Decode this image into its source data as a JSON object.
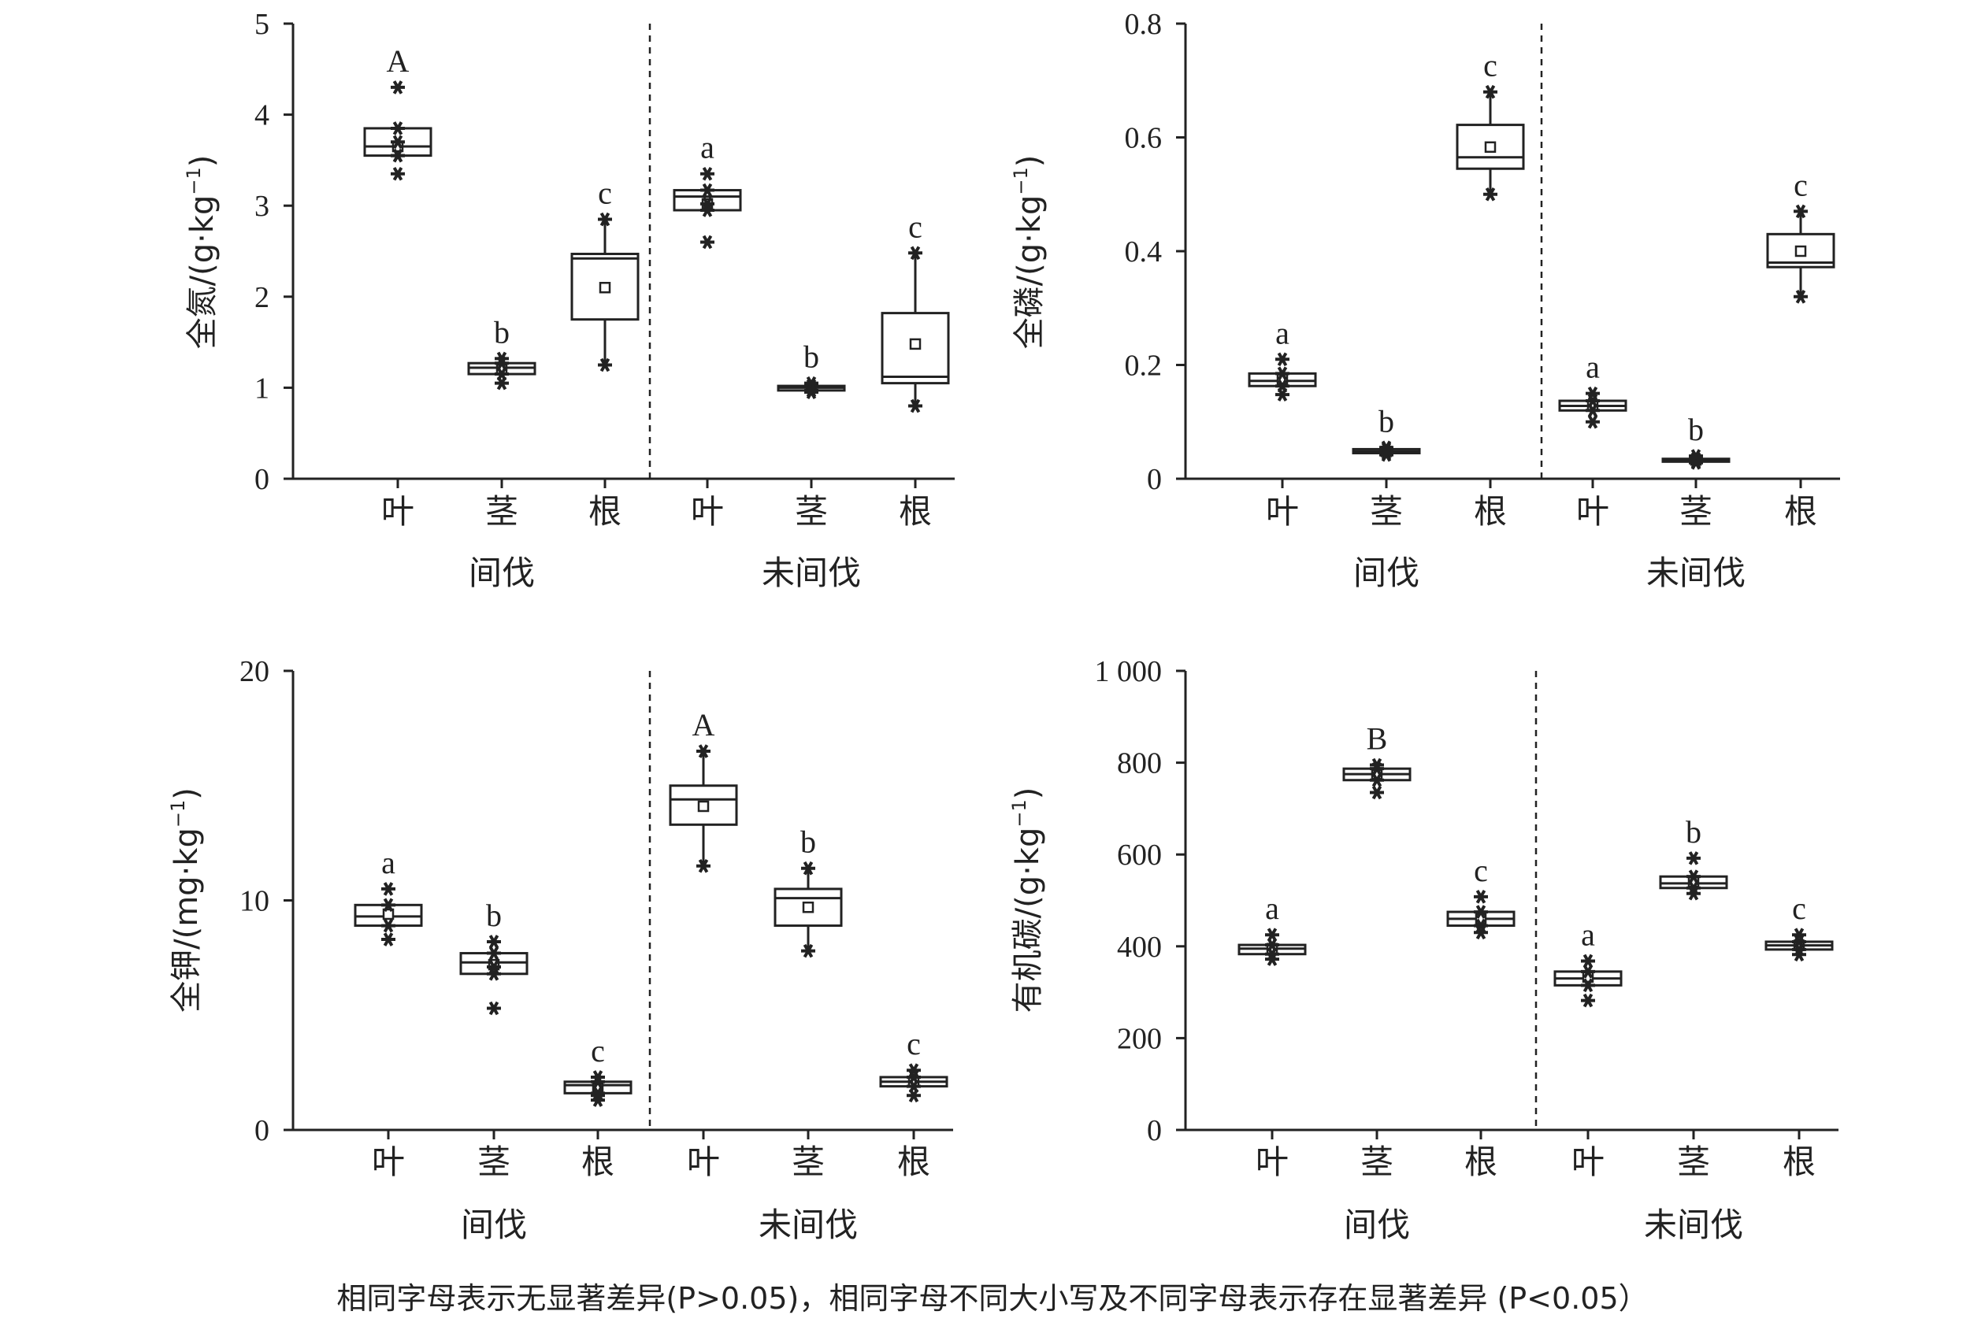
{
  "chart_data": [
    {
      "type": "box",
      "id": "N",
      "ylabel": "全氮/(g·kg",
      "ylabel_sup": "−1",
      "ylabel_end": ")",
      "ylim": [
        0,
        5
      ],
      "yticks": [
        "0",
        "1",
        "2",
        "3",
        "4",
        "5"
      ],
      "categories": [
        "叶",
        "茎",
        "根",
        "叶",
        "茎",
        "根"
      ],
      "groups": [
        "间伐",
        "未间伐"
      ],
      "boxes": [
        {
          "q1": 3.55,
          "median": 3.65,
          "q3": 3.85,
          "mean": 3.65,
          "wlow": 3.55,
          "whigh": 3.85,
          "outliers": [
            4.3,
            3.35,
            3.55,
            3.7
          ],
          "letter": "A"
        },
        {
          "q1": 1.15,
          "median": 1.22,
          "q3": 1.27,
          "mean": 1.2,
          "wlow": 1.15,
          "whigh": 1.27,
          "outliers": [
            1.32,
            1.05
          ],
          "letter": "b"
        },
        {
          "q1": 1.75,
          "median": 2.42,
          "q3": 2.47,
          "mean": 2.1,
          "wlow": 1.25,
          "whigh": 2.85,
          "outliers": [],
          "letter": "c"
        },
        {
          "q1": 2.95,
          "median": 3.1,
          "q3": 3.17,
          "mean": 3.02,
          "wlow": 2.95,
          "whigh": 3.17,
          "outliers": [
            3.35,
            2.6,
            3.02
          ],
          "letter": "a"
        },
        {
          "q1": 0.97,
          "median": 1.0,
          "q3": 1.02,
          "mean": 1.0,
          "wlow": 0.97,
          "whigh": 1.02,
          "outliers": [
            1.05,
            0.95
          ],
          "letter": "b"
        },
        {
          "q1": 1.05,
          "median": 1.12,
          "q3": 1.82,
          "mean": 1.48,
          "wlow": 0.8,
          "whigh": 2.48,
          "outliers": [],
          "letter": "c"
        }
      ]
    },
    {
      "type": "box",
      "id": "P",
      "ylabel": "全磷/(g·kg",
      "ylabel_sup": "−1",
      "ylabel_end": ")",
      "ylim": [
        0,
        0.8
      ],
      "yticks": [
        "0",
        "0.2",
        "0.4",
        "0.6",
        "0.8"
      ],
      "categories": [
        "叶",
        "茎",
        "根",
        "叶",
        "茎",
        "根"
      ],
      "groups": [
        "间伐",
        "未间伐"
      ],
      "boxes": [
        {
          "q1": 0.163,
          "median": 0.172,
          "q3": 0.185,
          "mean": 0.175,
          "wlow": 0.163,
          "whigh": 0.185,
          "outliers": [
            0.21,
            0.148
          ],
          "letter": "a"
        },
        {
          "q1": 0.045,
          "median": 0.048,
          "q3": 0.052,
          "mean": 0.048,
          "wlow": 0.045,
          "whigh": 0.052,
          "outliers": [
            0.055,
            0.042
          ],
          "letter": "b"
        },
        {
          "q1": 0.545,
          "median": 0.565,
          "q3": 0.622,
          "mean": 0.583,
          "wlow": 0.5,
          "whigh": 0.68,
          "outliers": [],
          "letter": "c"
        },
        {
          "q1": 0.12,
          "median": 0.128,
          "q3": 0.137,
          "mean": 0.128,
          "wlow": 0.12,
          "whigh": 0.137,
          "outliers": [
            0.15,
            0.1
          ],
          "letter": "a"
        },
        {
          "q1": 0.03,
          "median": 0.033,
          "q3": 0.035,
          "mean": 0.033,
          "wlow": 0.03,
          "whigh": 0.035,
          "outliers": [
            0.04,
            0.028
          ],
          "letter": "b"
        },
        {
          "q1": 0.372,
          "median": 0.38,
          "q3": 0.43,
          "mean": 0.4,
          "wlow": 0.32,
          "whigh": 0.47,
          "outliers": [],
          "letter": "c"
        }
      ]
    },
    {
      "type": "box",
      "id": "K",
      "ylabel": "全钾/(mg·kg",
      "ylabel_sup": "−1",
      "ylabel_end": ")",
      "ylim": [
        0,
        20
      ],
      "yticks": [
        "0",
        "10",
        "20"
      ],
      "categories": [
        "叶",
        "茎",
        "根",
        "叶",
        "茎",
        "根"
      ],
      "groups": [
        "间伐",
        "未间伐"
      ],
      "boxes": [
        {
          "q1": 8.9,
          "median": 9.3,
          "q3": 9.8,
          "mean": 9.4,
          "wlow": 8.9,
          "whigh": 9.8,
          "outliers": [
            10.5,
            8.3
          ],
          "letter": "a"
        },
        {
          "q1": 6.8,
          "median": 7.3,
          "q3": 7.7,
          "mean": 7.2,
          "wlow": 6.8,
          "whigh": 7.7,
          "outliers": [
            8.2,
            5.3,
            7.1
          ],
          "letter": "b"
        },
        {
          "q1": 1.6,
          "median": 1.95,
          "q3": 2.1,
          "mean": 1.8,
          "wlow": 1.6,
          "whigh": 2.1,
          "outliers": [
            2.3,
            1.3,
            1.5
          ],
          "letter": "c"
        },
        {
          "q1": 13.3,
          "median": 14.4,
          "q3": 15.0,
          "mean": 14.1,
          "wlow": 11.5,
          "whigh": 16.5,
          "outliers": [],
          "letter": "A"
        },
        {
          "q1": 8.9,
          "median": 10.1,
          "q3": 10.5,
          "mean": 9.7,
          "wlow": 7.8,
          "whigh": 11.4,
          "outliers": [],
          "letter": "b"
        },
        {
          "q1": 1.9,
          "median": 2.1,
          "q3": 2.3,
          "mean": 2.1,
          "wlow": 1.9,
          "whigh": 2.3,
          "outliers": [
            2.6,
            1.5
          ],
          "letter": "c"
        }
      ]
    },
    {
      "type": "box",
      "id": "C",
      "ylabel": "有机碳/(g·kg",
      "ylabel_sup": "−1",
      "ylabel_end": ")",
      "ylim": [
        0,
        1000
      ],
      "yticks": [
        "0",
        "200",
        "400",
        "600",
        "800",
        "1 000"
      ],
      "categories": [
        "叶",
        "茎",
        "根",
        "叶",
        "茎",
        "根"
      ],
      "groups": [
        "间伐",
        "未间伐"
      ],
      "boxes": [
        {
          "q1": 383,
          "median": 395,
          "q3": 403,
          "mean": 395,
          "wlow": 383,
          "whigh": 403,
          "outliers": [
            425,
            372
          ],
          "letter": "a"
        },
        {
          "q1": 762,
          "median": 775,
          "q3": 787,
          "mean": 775,
          "wlow": 762,
          "whigh": 787,
          "outliers": [
            795,
            735
          ],
          "letter": "B"
        },
        {
          "q1": 445,
          "median": 460,
          "q3": 475,
          "mean": 460,
          "wlow": 445,
          "whigh": 475,
          "outliers": [
            508,
            430
          ],
          "letter": "c"
        },
        {
          "q1": 315,
          "median": 330,
          "q3": 345,
          "mean": 333,
          "wlow": 315,
          "whigh": 345,
          "outliers": [
            368,
            282
          ],
          "letter": "a"
        },
        {
          "q1": 527,
          "median": 537,
          "q3": 552,
          "mean": 540,
          "wlow": 527,
          "whigh": 552,
          "outliers": [
            592,
            515
          ],
          "letter": "b"
        },
        {
          "q1": 393,
          "median": 402,
          "q3": 410,
          "mean": 402,
          "wlow": 393,
          "whigh": 410,
          "outliers": [
            425,
            382
          ],
          "letter": "c"
        }
      ]
    }
  ],
  "footnote": "相同字母表示无显著差异(P>0.05)，相同字母不同大小写及不同字母表示存在显著差异 (P<0.05）"
}
